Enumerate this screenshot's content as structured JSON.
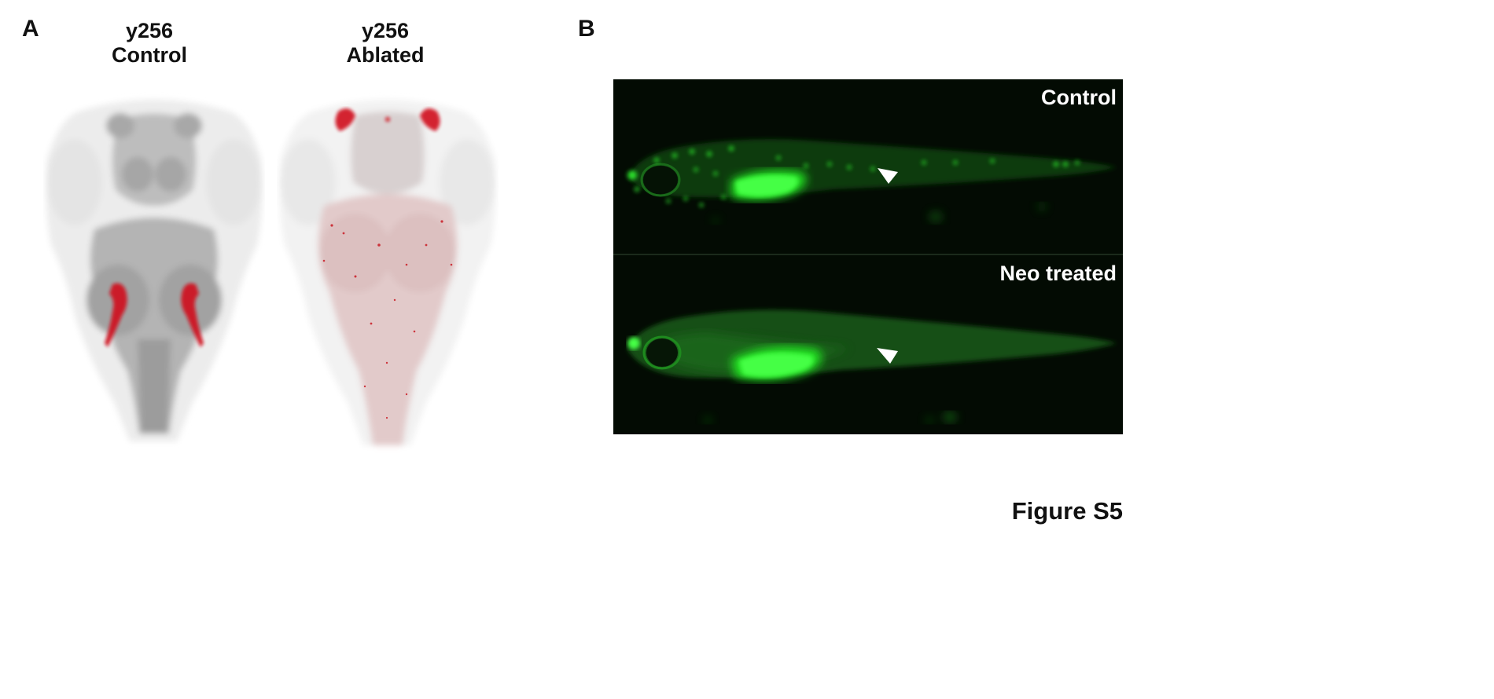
{
  "panel_a": {
    "letter": "A",
    "brains": [
      {
        "line1": "y256",
        "line2": "Control"
      },
      {
        "line1": "y256",
        "line2": "Ablated"
      }
    ]
  },
  "panel_b": {
    "letter": "B",
    "images": [
      {
        "label": "Control"
      },
      {
        "label": "Neo treated"
      }
    ]
  },
  "caption": "Figure S5",
  "colors": {
    "marker_red": "#d0101a",
    "fluorescence_green": "#22e022",
    "background_dark": "#030b03"
  }
}
